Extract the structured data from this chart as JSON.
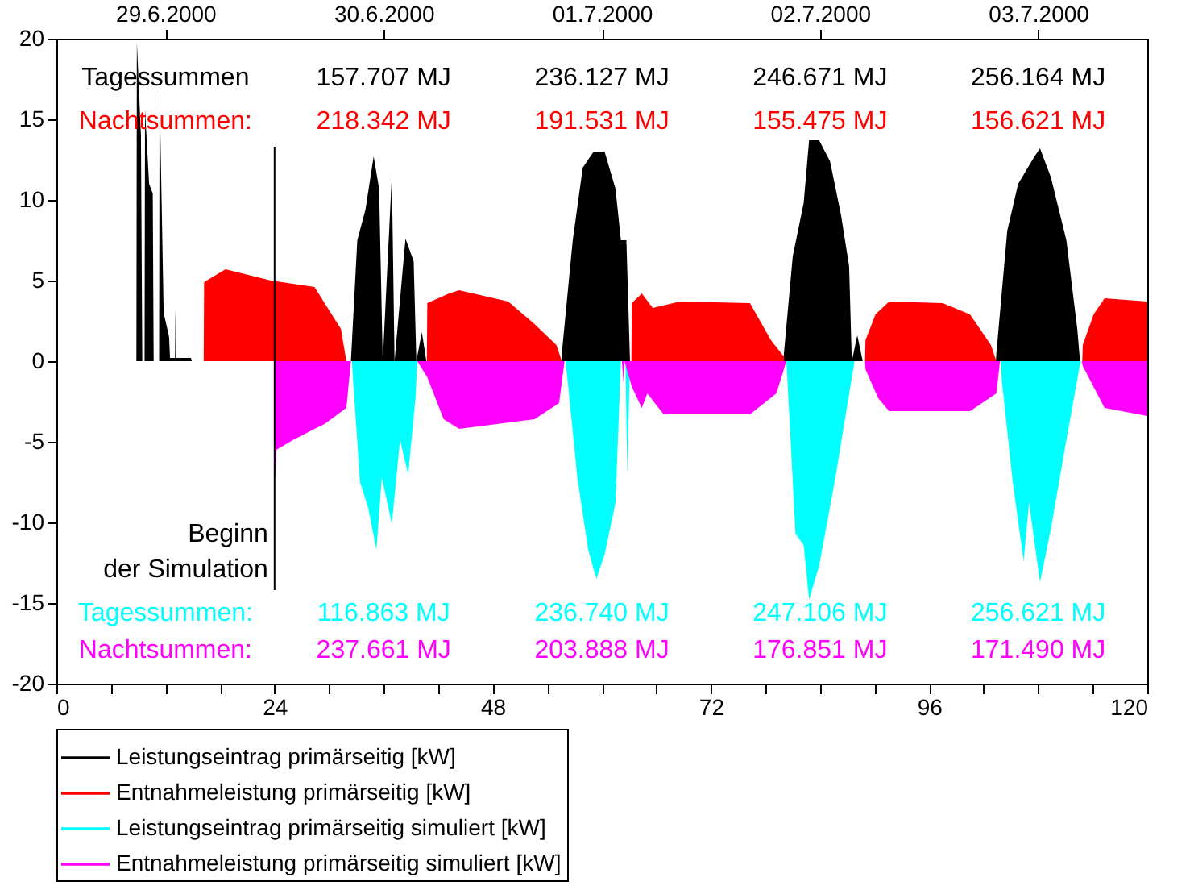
{
  "chart_data": {
    "type": "area",
    "xlim": [
      0,
      120
    ],
    "xticks": [
      0,
      {
        "value": 6,
        "label": null
      },
      {
        "value": 12,
        "label": null
      },
      {
        "value": 18,
        "label": null
      },
      24,
      {
        "value": 30,
        "label": null
      },
      {
        "value": 36,
        "label": null
      },
      {
        "value": 42,
        "label": null
      },
      48,
      {
        "value": 54,
        "label": null
      },
      {
        "value": 60,
        "label": null
      },
      {
        "value": 66,
        "label": null
      },
      72,
      {
        "value": 78,
        "label": null
      },
      {
        "value": 84,
        "label": null
      },
      {
        "value": 90,
        "label": null
      },
      96,
      {
        "value": 102,
        "label": null
      },
      {
        "value": 108,
        "label": null
      },
      {
        "value": 114,
        "label": null
      },
      120
    ],
    "x2lim": [
      "2000-06-29T00:00",
      "2000-07-04T00:00"
    ],
    "x2ticks": [
      {
        "value": "2000-06-29T12:00",
        "label": "29.6.2000"
      },
      {
        "value": "2000-06-30T12:00",
        "label": "30.6.2000"
      },
      {
        "value": "2000-07-01T12:00",
        "label": "01.7.2000"
      },
      {
        "value": "2000-07-02T12:00",
        "label": "02.7.2000"
      },
      {
        "value": "2000-07-03T12:00",
        "label": "03.7.2000"
      }
    ],
    "ylim": [
      -20,
      20
    ],
    "yticks": [
      -20,
      -15,
      -10,
      -5,
      0,
      5,
      10,
      15,
      20
    ],
    "grid": false,
    "legend": "bottom",
    "series": [
      {
        "name": "Leistungseintrag primärseitig [kW]",
        "color": "#000000",
        "x": [
          0,
          8.8,
          8.85,
          9.3,
          9.45,
          9.7,
          9.75,
          10.2,
          10.6,
          10.7,
          11.3,
          11.35,
          11.8,
          12.4,
          12.5,
          13.05,
          13.1,
          13.2,
          14.8,
          14.9,
          32.4,
          33.1,
          34,
          34.9,
          35.5,
          35.9,
          36.9,
          37.2,
          38.4,
          39.3,
          39.6,
          40.2,
          40.7,
          55.55,
          55.6,
          56.8,
          57.9,
          59.1,
          60.3,
          61.5,
          62.1,
          62.7,
          63.1,
          79.95,
          80,
          81,
          82.2,
          82.8,
          83.9,
          85.1,
          86.3,
          87.2,
          87.5,
          88.1,
          88.7,
          103.35,
          103.4,
          104.6,
          105.8,
          107.6,
          108.2,
          109.4,
          111.1,
          112.3,
          112.6
        ],
        "values": [
          0,
          0,
          19.8,
          14,
          0,
          0,
          15.6,
          11,
          10.4,
          0,
          0,
          16.8,
          3,
          1.5,
          0.2,
          0.2,
          3.2,
          0.2,
          0.2,
          0,
          0,
          7.5,
          9.4,
          12.7,
          10.7,
          0,
          11.5,
          0,
          7.6,
          6.2,
          0,
          1.8,
          0,
          0,
          0.5,
          7.5,
          12,
          13,
          13,
          10.7,
          7.5,
          7.5,
          0,
          0,
          0.3,
          6.5,
          9.8,
          13.7,
          13.7,
          12.4,
          9.1,
          5.9,
          0,
          1.6,
          0,
          0,
          0.5,
          8.1,
          11,
          12.7,
          13.2,
          11.4,
          7.5,
          2,
          0
        ]
      },
      {
        "name": "Entnahmeleistung primärseitig [kW]",
        "color": "#ff0000",
        "x": [
          16.2,
          16.25,
          18.6,
          23.6,
          28.4,
          29.5,
          31.3,
          31.9,
          40.75,
          40.8,
          43.2,
          44.3,
          49.7,
          52.6,
          55,
          55.6,
          63.25,
          63.3,
          64.4,
          65.6,
          68.6,
          76.3,
          78.6,
          80,
          80.05,
          88.95,
          89,
          90.1,
          91.6,
          97.5,
          100.5,
          102.8,
          103.4,
          112.85,
          112.9,
          114.1,
          115.3,
          120
        ],
        "values": [
          0,
          4.9,
          5.7,
          5,
          4.6,
          3.6,
          2,
          0,
          0,
          3.6,
          4.2,
          4.4,
          3.7,
          2.3,
          1,
          0,
          0,
          3.6,
          4.2,
          3.3,
          3.7,
          3.6,
          1.3,
          0.3,
          0,
          0,
          1.3,
          2.9,
          3.7,
          3.6,
          2.9,
          1,
          0,
          0,
          1,
          2.9,
          3.9,
          3.7
        ]
      },
      {
        "name": "Leistungseintrag primärseitig simuliert [kW]",
        "color": "#00ffff",
        "x": [
          32.5,
          33.4,
          34.3,
          35.2,
          35.8,
          36.9,
          37.8,
          38.7,
          39.5,
          39.7,
          56,
          56.2,
          57.3,
          58.5,
          59.4,
          60.3,
          61.5,
          62.1,
          62.6,
          62.8,
          63.1,
          80.3,
          80.4,
          81.3,
          82.2,
          82.8,
          83.9,
          85.7,
          87.5,
          87.8,
          103.9,
          104,
          105.2,
          106.4,
          107,
          108.2,
          109.4,
          111.1,
          112.5,
          112.7
        ],
        "values": [
          0,
          -7.5,
          -9.1,
          -11.7,
          -7.2,
          -10.1,
          -4.9,
          -7,
          -2.3,
          0,
          0,
          -1,
          -7.2,
          -11.7,
          -13.5,
          -12,
          -8.8,
          0,
          0,
          -7,
          0,
          0,
          -1,
          -10.7,
          -11.4,
          -14.8,
          -12.7,
          -7.2,
          -1,
          0,
          0,
          -1.2,
          -7.5,
          -12.4,
          -8.8,
          -13.7,
          -10.4,
          -4.9,
          -0.5,
          0
        ]
      },
      {
        "name": "Entnahmeleistung primärseitig simuliert [kW]",
        "color": "#ff00ff",
        "x": [
          23.95,
          24,
          24.2,
          26,
          28.4,
          29.5,
          31.9,
          32.4,
          39.7,
          40.8,
          42.6,
          44.3,
          52.6,
          55.3,
          55.9,
          62.2,
          62.4,
          62.5,
          63.3,
          64.4,
          65,
          66.8,
          76.3,
          79.2,
          80.3,
          88.95,
          89,
          90.4,
          91.6,
          100.5,
          103.4,
          103.8,
          112.8,
          112.9,
          114.1,
          115.3,
          120
        ],
        "values": [
          0,
          -7.8,
          -5.5,
          -4.9,
          -4.2,
          -3.9,
          -2.9,
          0,
          0,
          -1,
          -3.6,
          -4.2,
          -3.6,
          -2.6,
          0,
          0,
          -1.4,
          0,
          -1.6,
          -2.9,
          -2,
          -3.3,
          -3.3,
          -2,
          0,
          0,
          -0.5,
          -2.3,
          -3.1,
          -3.1,
          -2,
          0,
          0,
          -0.3,
          -1.6,
          -2.9,
          -3.4
        ]
      }
    ],
    "ref_lines": [
      {
        "axis": "x",
        "value": 24,
        "label": "Beginn\nder Simulation",
        "color": "#000000"
      }
    ],
    "annotations": [
      "Tagessummen",
      "157.707 MJ",
      "236.127 MJ",
      "246.671 MJ",
      "256.164 MJ",
      "Nachtsummen:",
      "218.342 MJ",
      "191.531 MJ",
      "155.475 MJ",
      "156.621 MJ",
      "Tagessummen:",
      "116.863 MJ",
      "236.740 MJ",
      "247.106 MJ",
      "256.621 MJ",
      "Nachtsummen:",
      "237.661 MJ",
      "203.888 MJ",
      "176.851 MJ",
      "171.490 MJ"
    ]
  }
}
